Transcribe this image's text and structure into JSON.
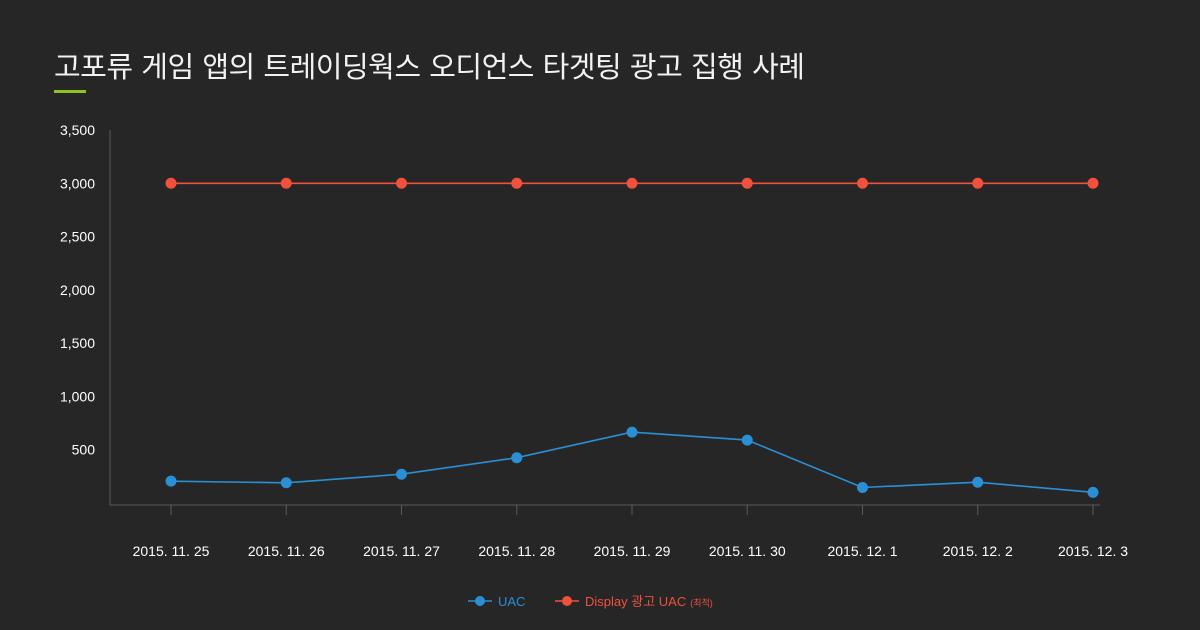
{
  "title": "고포류 게임 앱의 트레이딩웍스 오디언스 타겟팅 광고 집행 사례",
  "colors": {
    "background": "#262626",
    "accent": "#8fc31f",
    "axis": "#5a5a5a",
    "text": "#ffffff"
  },
  "chart_data": {
    "type": "line",
    "title": "",
    "xlabel": "",
    "ylabel": "",
    "categories": [
      "2015. 11. 25",
      "2015. 11. 26",
      "2015. 11. 27",
      "2015. 11. 28",
      "2015. 11. 29",
      "2015. 11. 30",
      "2015. 12. 1",
      "2015. 12. 2",
      "2015. 12. 3"
    ],
    "yticks": [
      500,
      1000,
      1500,
      2000,
      2500,
      3000,
      3500
    ],
    "ytick_labels": [
      "500",
      "1,000",
      "1,500",
      "2,000",
      "2,500",
      "3,000",
      "3,500"
    ],
    "ylim": [
      0,
      3500
    ],
    "grid": false,
    "legend_position": "bottom-center",
    "series": [
      {
        "name": "UAC",
        "color": "#2a8fd4",
        "values": [
          205,
          190,
          270,
          425,
          665,
          590,
          145,
          195,
          100
        ]
      },
      {
        "name": "Display 광고 UAC",
        "note": "(최적)",
        "color": "#f0503c",
        "values": [
          3000,
          3000,
          3000,
          3000,
          3000,
          3000,
          3000,
          3000,
          3000
        ]
      }
    ]
  }
}
